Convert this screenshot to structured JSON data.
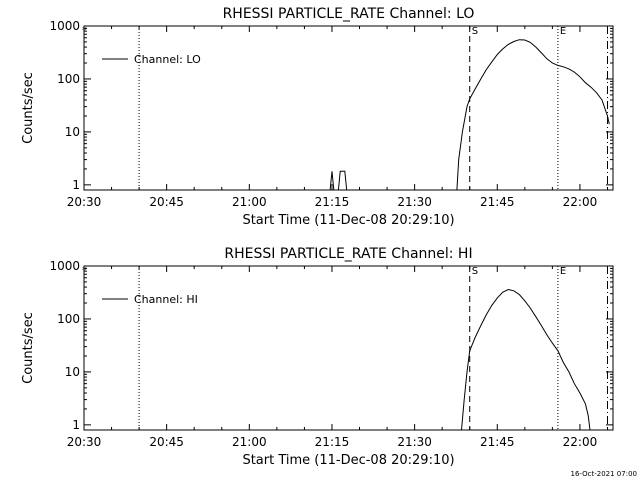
{
  "footer_timestamp": "16-Oct-2021 07:00",
  "chart_data": [
    {
      "type": "line",
      "title": "RHESSI PARTICLE_RATE Channel: LO",
      "xlabel": "Start Time (11-Dec-08 20:29:10)",
      "ylabel": "Counts/sec",
      "x_ticks": [
        "20:30",
        "20:45",
        "21:00",
        "21:15",
        "21:30",
        "21:45",
        "22:00"
      ],
      "y_ticks": [
        "1",
        "10",
        "100",
        "1000"
      ],
      "y_scale": "log",
      "xlim": [
        "20:30",
        "22:06"
      ],
      "ylim": [
        0.8,
        1000
      ],
      "legend": {
        "label": "Channel: LO",
        "placement": "top-left"
      },
      "markers": [
        {
          "time": "20:40",
          "style": "dotted",
          "label": ""
        },
        {
          "time": "21:40",
          "style": "dashed",
          "label": "S"
        },
        {
          "time": "21:56",
          "style": "dotted",
          "label": "E"
        },
        {
          "time": "22:05",
          "style": "dashdot",
          "label": ""
        }
      ],
      "series": [
        {
          "name": "Channel: LO",
          "segments": [
            [
              [
                "21:14:40",
                0.8
              ],
              [
                "21:15:00",
                1.8
              ],
              [
                "21:15:20",
                0.8
              ]
            ],
            [
              [
                "21:16:10",
                0.8
              ],
              [
                "21:16:30",
                1.8
              ],
              [
                "21:17:20",
                1.8
              ],
              [
                "21:17:40",
                0.8
              ]
            ],
            [
              [
                "21:37:40",
                0.8
              ],
              [
                "21:38:00",
                3
              ],
              [
                "21:38:40",
                10
              ],
              [
                "21:39:30",
                30
              ],
              [
                "21:40:00",
                42
              ],
              [
                "21:41:00",
                65
              ],
              [
                "21:42:00",
                100
              ],
              [
                "21:43:00",
                150
              ],
              [
                "21:44:00",
                210
              ],
              [
                "21:45:00",
                290
              ],
              [
                "21:46:00",
                370
              ],
              [
                "21:47:00",
                450
              ],
              [
                "21:48:00",
                510
              ],
              [
                "21:49:00",
                550
              ],
              [
                "21:50:00",
                545
              ],
              [
                "21:51:00",
                490
              ],
              [
                "21:52:00",
                400
              ],
              [
                "21:53:00",
                310
              ],
              [
                "21:54:00",
                240
              ],
              [
                "21:55:00",
                200
              ],
              [
                "21:56:00",
                180
              ],
              [
                "21:57:00",
                170
              ],
              [
                "21:58:00",
                155
              ],
              [
                "21:59:00",
                135
              ],
              [
                "22:00:00",
                110
              ],
              [
                "22:01:00",
                85
              ],
              [
                "22:02:00",
                70
              ],
              [
                "22:03:00",
                55
              ],
              [
                "22:04:00",
                40
              ],
              [
                "22:05:00",
                20
              ],
              [
                "22:05:20",
                14
              ]
            ]
          ]
        }
      ]
    },
    {
      "type": "line",
      "title": "RHESSI PARTICLE_RATE Channel: HI",
      "xlabel": "Start Time (11-Dec-08 20:29:10)",
      "ylabel": "Counts/sec",
      "x_ticks": [
        "20:30",
        "20:45",
        "21:00",
        "21:15",
        "21:30",
        "21:45",
        "22:00"
      ],
      "y_ticks": [
        "1",
        "10",
        "100",
        "1000"
      ],
      "y_scale": "log",
      "xlim": [
        "20:30",
        "22:06"
      ],
      "ylim": [
        0.8,
        1000
      ],
      "legend": {
        "label": "Channel: HI",
        "placement": "top-left"
      },
      "markers": [
        {
          "time": "20:40",
          "style": "dotted",
          "label": ""
        },
        {
          "time": "21:40",
          "style": "dashed",
          "label": "S"
        },
        {
          "time": "21:56",
          "style": "dotted",
          "label": "E"
        },
        {
          "time": "22:05",
          "style": "dashdot",
          "label": ""
        }
      ],
      "series": [
        {
          "name": "Channel: HI",
          "segments": [
            [
              [
                "21:38:30",
                0.8
              ],
              [
                "21:39:00",
                3
              ],
              [
                "21:39:30",
                10
              ],
              [
                "21:40:00",
                25
              ],
              [
                "21:41:00",
                45
              ],
              [
                "21:42:00",
                75
              ],
              [
                "21:43:00",
                120
              ],
              [
                "21:44:00",
                180
              ],
              [
                "21:45:00",
                250
              ],
              [
                "21:46:00",
                320
              ],
              [
                "21:47:00",
                360
              ],
              [
                "21:48:00",
                340
              ],
              [
                "21:49:00",
                290
              ],
              [
                "21:50:00",
                220
              ],
              [
                "21:51:00",
                160
              ],
              [
                "21:52:00",
                110
              ],
              [
                "21:53:00",
                75
              ],
              [
                "21:54:00",
                50
              ],
              [
                "21:55:00",
                35
              ],
              [
                "21:56:00",
                25
              ],
              [
                "21:57:00",
                15
              ],
              [
                "21:58:00",
                10
              ],
              [
                "21:59:00",
                6
              ],
              [
                "22:00:00",
                4
              ],
              [
                "22:01:00",
                2.5
              ],
              [
                "22:01:30",
                1.5
              ],
              [
                "22:01:50",
                0.8
              ]
            ]
          ]
        }
      ]
    }
  ]
}
